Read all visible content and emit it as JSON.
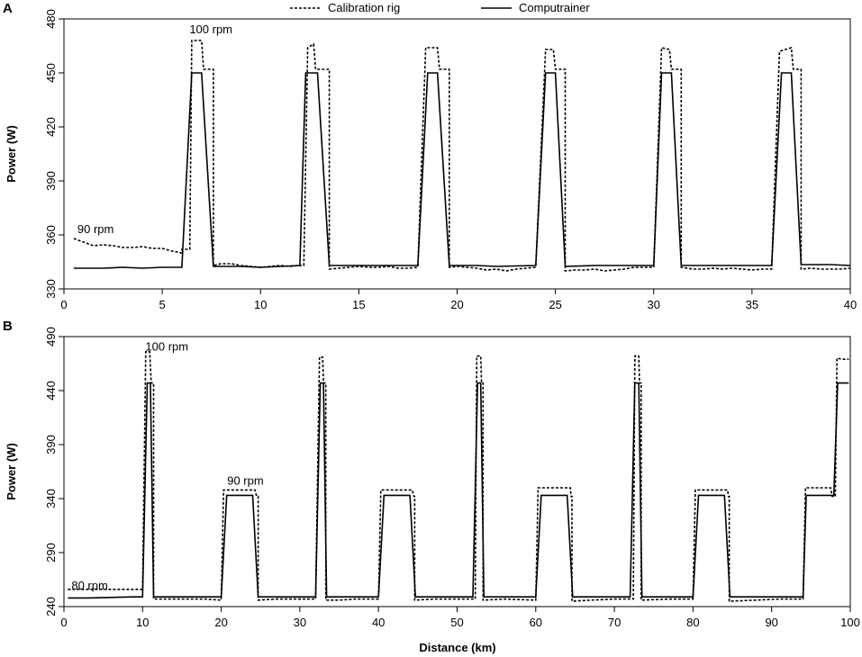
{
  "legend": {
    "items": [
      {
        "label": "Calibration rig",
        "style": "dotted"
      },
      {
        "label": "Computrainer",
        "style": "solid"
      }
    ]
  },
  "xlabel": "Distance (km)",
  "chart_data": [
    {
      "type": "line",
      "panel_label": "A",
      "ylabel": "Power (W)",
      "xlim": [
        0,
        40
      ],
      "ylim": [
        330,
        480
      ],
      "xticks": [
        0,
        5,
        10,
        15,
        20,
        25,
        30,
        35,
        40
      ],
      "yticks": [
        330,
        360,
        390,
        420,
        450,
        480
      ],
      "annotations": [
        {
          "text": "90 rpm",
          "x": 0.5,
          "y": 361
        },
        {
          "text": "100 rpm",
          "x": 6.2,
          "y": 472
        }
      ],
      "series": [
        {
          "name": "Calibration rig",
          "style": "dotted",
          "points": [
            [
              0.5,
              358
            ],
            [
              1,
              356
            ],
            [
              1.5,
              354
            ],
            [
              2,
              354.5
            ],
            [
              2.5,
              354
            ],
            [
              3,
              353
            ],
            [
              3.5,
              353
            ],
            [
              4,
              353.5
            ],
            [
              4.5,
              352.5
            ],
            [
              5,
              352.5
            ],
            [
              5.5,
              351
            ],
            [
              6,
              350
            ],
            [
              6,
              352
            ],
            [
              6.4,
              352
            ],
            [
              6.5,
              468
            ],
            [
              7.0,
              468
            ],
            [
              7.1,
              452
            ],
            [
              7.6,
              452
            ],
            [
              7.6,
              343
            ],
            [
              8,
              344
            ],
            [
              8.5,
              344
            ],
            [
              9,
              343
            ],
            [
              9.5,
              342.5
            ],
            [
              10,
              342
            ],
            [
              10.5,
              342.5
            ],
            [
              11,
              343
            ],
            [
              11.5,
              342.5
            ],
            [
              11.9,
              343
            ],
            [
              12.2,
              343
            ],
            [
              12.4,
              464
            ],
            [
              12.7,
              466
            ],
            [
              12.8,
              452
            ],
            [
              13.5,
              452
            ],
            [
              13.5,
              341
            ],
            [
              14,
              341.5
            ],
            [
              14.5,
              342
            ],
            [
              15,
              342.5
            ],
            [
              15.5,
              342
            ],
            [
              16,
              342
            ],
            [
              16.5,
              342.5
            ],
            [
              17,
              341.5
            ],
            [
              17.5,
              341.5
            ],
            [
              18,
              342
            ],
            [
              18.4,
              464
            ],
            [
              19.0,
              464
            ],
            [
              19.1,
              452
            ],
            [
              19.6,
              452
            ],
            [
              19.6,
              342
            ],
            [
              20,
              342.5
            ],
            [
              20.5,
              342
            ],
            [
              21,
              341.5
            ],
            [
              21.5,
              340.5
            ],
            [
              22,
              341
            ],
            [
              22.5,
              340
            ],
            [
              23,
              341
            ],
            [
              23.5,
              341.5
            ],
            [
              24,
              342
            ],
            [
              24.5,
              463
            ],
            [
              24.9,
              463
            ],
            [
              25,
              452
            ],
            [
              25.5,
              452
            ],
            [
              25.5,
              340
            ],
            [
              26,
              340.5
            ],
            [
              26.5,
              340.5
            ],
            [
              27,
              341
            ],
            [
              27.5,
              340
            ],
            [
              28,
              340.5
            ],
            [
              28.5,
              341
            ],
            [
              29,
              342
            ],
            [
              29.5,
              342
            ],
            [
              30,
              342
            ],
            [
              30.4,
              464
            ],
            [
              30.8,
              463
            ],
            [
              30.9,
              452
            ],
            [
              31.4,
              452
            ],
            [
              31.4,
              342
            ],
            [
              32,
              341
            ],
            [
              32.5,
              341
            ],
            [
              33,
              341.5
            ],
            [
              33.5,
              341
            ],
            [
              34,
              341.5
            ],
            [
              34.5,
              341
            ],
            [
              35,
              340.5
            ],
            [
              35.5,
              341
            ],
            [
              36,
              341
            ],
            [
              36.4,
              462
            ],
            [
              37.0,
              464
            ],
            [
              37.1,
              452
            ],
            [
              37.5,
              452
            ],
            [
              37.5,
              341
            ],
            [
              38,
              341.5
            ],
            [
              38.5,
              341
            ],
            [
              39,
              341
            ],
            [
              39.5,
              341
            ],
            [
              40,
              341.5
            ]
          ]
        },
        {
          "name": "Computrainer",
          "style": "solid",
          "points": [
            [
              0.5,
              341.5
            ],
            [
              2,
              341.5
            ],
            [
              3,
              342
            ],
            [
              4,
              341.5
            ],
            [
              5,
              342
            ],
            [
              6,
              342
            ],
            [
              6.5,
              450
            ],
            [
              7.0,
              450
            ],
            [
              7.6,
              342.5
            ],
            [
              9,
              342.5
            ],
            [
              10,
              342
            ],
            [
              11,
              342.5
            ],
            [
              12,
              343
            ],
            [
              12.3,
              450
            ],
            [
              12.9,
              450
            ],
            [
              13.5,
              343
            ],
            [
              15,
              343
            ],
            [
              17,
              343
            ],
            [
              18,
              343
            ],
            [
              18.5,
              450
            ],
            [
              19.0,
              450
            ],
            [
              19.6,
              343
            ],
            [
              21,
              343
            ],
            [
              22,
              342.5
            ],
            [
              24,
              343
            ],
            [
              24.5,
              450
            ],
            [
              25.0,
              450
            ],
            [
              25.5,
              342.5
            ],
            [
              27,
              343
            ],
            [
              29,
              343
            ],
            [
              30,
              343
            ],
            [
              30.4,
              450
            ],
            [
              30.9,
              450
            ],
            [
              31.4,
              343
            ],
            [
              33,
              343
            ],
            [
              35,
              343
            ],
            [
              36,
              343
            ],
            [
              36.5,
              450
            ],
            [
              37.0,
              450
            ],
            [
              37.5,
              343.5
            ],
            [
              39,
              343.5
            ],
            [
              40,
              343
            ]
          ]
        }
      ]
    },
    {
      "type": "line",
      "panel_label": "B",
      "ylabel": "Power (W)",
      "xlim": [
        0,
        100
      ],
      "ylim": [
        240,
        490
      ],
      "xticks": [
        0,
        10,
        20,
        30,
        40,
        50,
        60,
        70,
        80,
        90,
        100
      ],
      "yticks": [
        240,
        290,
        340,
        390,
        440,
        490
      ],
      "annotations": [
        {
          "text": "80 rpm",
          "x": 0.5,
          "y": 256
        },
        {
          "text": "90 rpm",
          "x": 20.3,
          "y": 353
        },
        {
          "text": "100 rpm",
          "x": 9.9,
          "y": 477
        }
      ],
      "series": [
        {
          "name": "Calibration rig",
          "style": "dotted",
          "points": [
            [
              0.5,
              256
            ],
            [
              2,
              256
            ],
            [
              5,
              256
            ],
            [
              8,
              256
            ],
            [
              10,
              256
            ],
            [
              10.4,
              476
            ],
            [
              10.9,
              476
            ],
            [
              11.1,
              447
            ],
            [
              11.4,
              447
            ],
            [
              11.4,
              247
            ],
            [
              13,
              247
            ],
            [
              15,
              247
            ],
            [
              18,
              247
            ],
            [
              20,
              246
            ],
            [
              20.3,
              348
            ],
            [
              24.3,
              348
            ],
            [
              24.5,
              342
            ],
            [
              24.7,
              342
            ],
            [
              24.7,
              246
            ],
            [
              27,
              247
            ],
            [
              30,
              247
            ],
            [
              32,
              247
            ],
            [
              32.5,
              471
            ],
            [
              32.9,
              471
            ],
            [
              33.0,
              447
            ],
            [
              33.3,
              447
            ],
            [
              33.3,
              246
            ],
            [
              35,
              246
            ],
            [
              37,
              247
            ],
            [
              40,
              247
            ],
            [
              40.3,
              348
            ],
            [
              44.3,
              348
            ],
            [
              44.5,
              342
            ],
            [
              44.6,
              342
            ],
            [
              44.6,
              246
            ],
            [
              47,
              247
            ],
            [
              50,
              247
            ],
            [
              52.3,
              247
            ],
            [
              52.5,
              472
            ],
            [
              53.0,
              472
            ],
            [
              53.1,
              447
            ],
            [
              53.3,
              447
            ],
            [
              53.3,
              246
            ],
            [
              56,
              247
            ],
            [
              60,
              246
            ],
            [
              60.3,
              350
            ],
            [
              64.4,
              350
            ],
            [
              64.5,
              342
            ],
            [
              64.6,
              342
            ],
            [
              64.6,
              245
            ],
            [
              67,
              246
            ],
            [
              70,
              247
            ],
            [
              72.4,
              247
            ],
            [
              72.6,
              472
            ],
            [
              73.1,
              472
            ],
            [
              73.2,
              447
            ],
            [
              73.4,
              447
            ],
            [
              73.4,
              246
            ],
            [
              77,
              247
            ],
            [
              80,
              247
            ],
            [
              80.3,
              348
            ],
            [
              84.4,
              348
            ],
            [
              84.5,
              342
            ],
            [
              84.6,
              342
            ],
            [
              84.6,
              245
            ],
            [
              88,
              246
            ],
            [
              91,
              247
            ],
            [
              94,
              247
            ],
            [
              94.3,
              350
            ],
            [
              97.5,
              350
            ],
            [
              97.7,
              342
            ],
            [
              98.1,
              342
            ],
            [
              98.3,
              470
            ],
            [
              99,
              469
            ],
            [
              99.8,
              469
            ]
          ]
        },
        {
          "name": "Computrainer",
          "style": "solid",
          "points": [
            [
              0.5,
              248
            ],
            [
              3,
              248
            ],
            [
              6,
              248.5
            ],
            [
              9,
              249
            ],
            [
              10,
              249
            ],
            [
              10.6,
              447
            ],
            [
              11.0,
              447
            ],
            [
              11.4,
              249
            ],
            [
              14,
              249
            ],
            [
              17,
              249
            ],
            [
              20,
              249
            ],
            [
              20.7,
              343
            ],
            [
              24.0,
              343
            ],
            [
              24.7,
              249
            ],
            [
              28,
              249
            ],
            [
              32,
              249
            ],
            [
              32.6,
              447
            ],
            [
              33.0,
              447
            ],
            [
              33.4,
              249
            ],
            [
              36,
              249
            ],
            [
              40,
              249
            ],
            [
              40.7,
              343
            ],
            [
              44.0,
              343
            ],
            [
              44.7,
              249
            ],
            [
              48,
              249
            ],
            [
              52,
              249
            ],
            [
              52.6,
              447
            ],
            [
              53.0,
              447
            ],
            [
              53.4,
              249
            ],
            [
              57,
              249
            ],
            [
              60,
              249
            ],
            [
              60.7,
              343
            ],
            [
              64.0,
              343
            ],
            [
              64.7,
              249
            ],
            [
              68,
              249
            ],
            [
              72,
              249
            ],
            [
              72.6,
              447
            ],
            [
              73.1,
              447
            ],
            [
              73.5,
              249
            ],
            [
              77,
              249
            ],
            [
              80,
              249
            ],
            [
              80.7,
              343
            ],
            [
              84.0,
              343
            ],
            [
              84.7,
              249
            ],
            [
              88,
              249
            ],
            [
              94,
              249
            ],
            [
              94.4,
              343
            ],
            [
              97.9,
              343
            ],
            [
              98.4,
              447
            ],
            [
              99.8,
              447
            ]
          ]
        }
      ]
    }
  ]
}
